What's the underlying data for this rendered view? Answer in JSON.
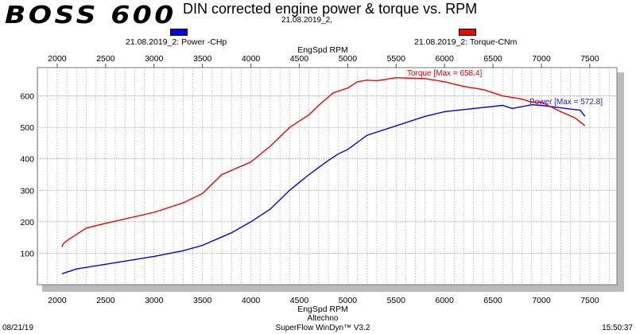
{
  "header": {
    "logo": "BOSS 600",
    "title": "DIN corrected engine power & torque vs. RPM",
    "subtitle": "21.08.2019_2,"
  },
  "footer": {
    "date": "08/21/19",
    "company": "Altechno",
    "software": "SuperFlow WinDyn™ V3.2",
    "time": "15:50:37"
  },
  "chart_data": {
    "type": "line",
    "xlabel": "EngSpd RPM",
    "xticks": [
      2000,
      2500,
      3000,
      3500,
      4000,
      4500,
      5000,
      5500,
      6000,
      6500,
      7000,
      7500
    ],
    "yticks": [
      100,
      200,
      300,
      400,
      500,
      600
    ],
    "xlim": [
      1795,
      7780
    ],
    "ylim": [
      0,
      690
    ],
    "grid": true,
    "legend_position": "top",
    "series": [
      {
        "name": "21.08.2019_2: Power -CHp",
        "color": "#0000ff",
        "annotation": "Power  [Max = 572.8]",
        "x": [
          2050,
          2200,
          2500,
          3000,
          3300,
          3500,
          3800,
          4000,
          4200,
          4400,
          4600,
          4800,
          4900,
          5000,
          5200,
          5500,
          5800,
          6000,
          6300,
          6600,
          6700,
          6900,
          7000,
          7200,
          7300,
          7400,
          7450
        ],
        "y": [
          35,
          50,
          65,
          90,
          108,
          125,
          165,
          200,
          240,
          300,
          350,
          395,
          415,
          430,
          475,
          505,
          535,
          550,
          560,
          570,
          560,
          572,
          570,
          562,
          558,
          555,
          535
        ]
      },
      {
        "name": "21.08.2019_2: Torque-CNm",
        "color": "#ff0000",
        "annotation": "Torque [Max = 658.4]",
        "x": [
          2050,
          2060,
          2100,
          2200,
          2300,
          2500,
          3000,
          3300,
          3500,
          3700,
          4000,
          4200,
          4400,
          4600,
          4700,
          4850,
          5000,
          5100,
          5200,
          5300,
          5500,
          5800,
          6000,
          6200,
          6400,
          6600,
          6800,
          6900,
          7000,
          7200,
          7350,
          7450
        ],
        "y": [
          120,
          130,
          140,
          160,
          180,
          195,
          230,
          260,
          290,
          350,
          390,
          440,
          500,
          540,
          570,
          610,
          625,
          645,
          650,
          648,
          658,
          655,
          645,
          630,
          620,
          600,
          590,
          580,
          580,
          550,
          530,
          505
        ]
      }
    ]
  }
}
